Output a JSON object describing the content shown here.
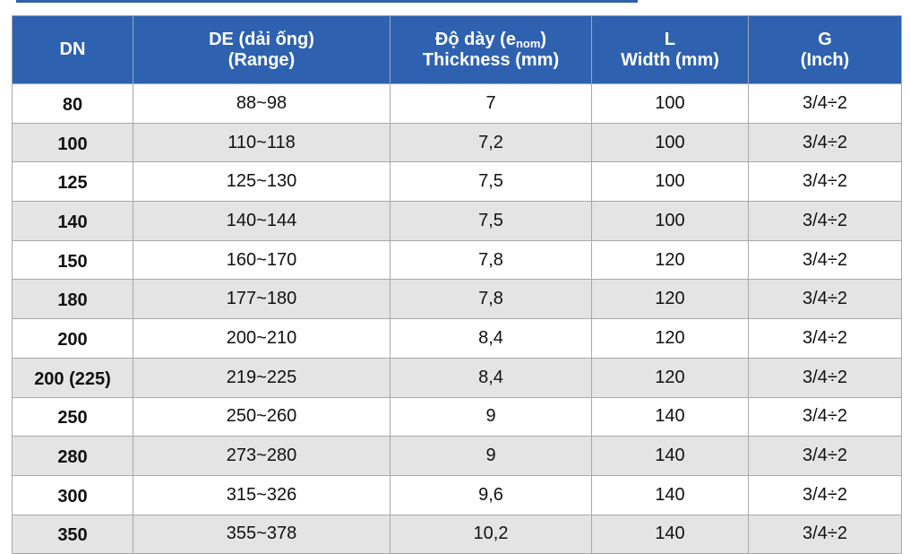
{
  "table": {
    "header": [
      {
        "line1": "DN"
      },
      {
        "line1": "DE (dải ống)",
        "line2": "(Range)"
      },
      {
        "line1_pre": "Độ dày (e",
        "line1_sub": "nom",
        "line1_post": ")",
        "line2": "Thickness (mm)"
      },
      {
        "line1": "L",
        "line2": "Width (mm)"
      },
      {
        "line1": "G",
        "line2": "(Inch)"
      }
    ],
    "rows": [
      [
        "80",
        "88~98",
        "7",
        "100",
        "3/4÷2"
      ],
      [
        "100",
        "110~118",
        "7,2",
        "100",
        "3/4÷2"
      ],
      [
        "125",
        "125~130",
        "7,5",
        "100",
        "3/4÷2"
      ],
      [
        "140",
        "140~144",
        "7,5",
        "100",
        "3/4÷2"
      ],
      [
        "150",
        "160~170",
        "7,8",
        "120",
        "3/4÷2"
      ],
      [
        "180",
        "177~180",
        "7,8",
        "120",
        "3/4÷2"
      ],
      [
        "200",
        "200~210",
        "8,4",
        "120",
        "3/4÷2"
      ],
      [
        "200 (225)",
        "219~225",
        "8,4",
        "120",
        "3/4÷2"
      ],
      [
        "250",
        "250~260",
        "9",
        "140",
        "3/4÷2"
      ],
      [
        "280",
        "273~280",
        "9",
        "140",
        "3/4÷2"
      ],
      [
        "300",
        "315~326",
        "9,6",
        "140",
        "3/4÷2"
      ],
      [
        "350",
        "355~378",
        "10,2",
        "140",
        "3/4÷2"
      ]
    ]
  }
}
